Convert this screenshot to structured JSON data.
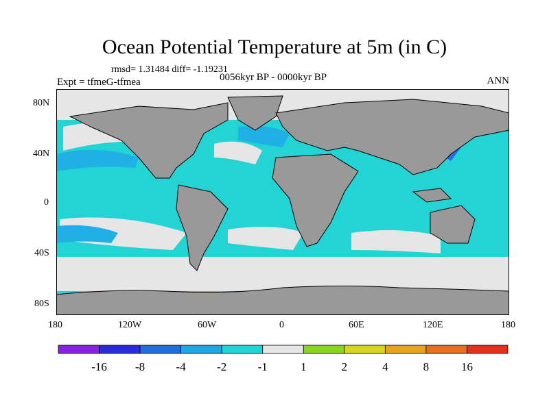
{
  "header": {
    "title": "Ocean Potential Temperature at 5m (in C)",
    "stats": "rmsd= 1.31484 diff= -1.19231",
    "experiment": "Expt = tfmeG-tfmea",
    "period": "0056kyr BP - 0000kyr BP",
    "season": "ANN"
  },
  "axes": {
    "x_ticks": [
      "180",
      "120W",
      "60W",
      "0",
      "60E",
      "120E",
      "180"
    ],
    "y_ticks": [
      "80N",
      "40N",
      "0",
      "40S",
      "80S"
    ]
  },
  "colorbar": {
    "labels": [
      "-16",
      "-8",
      "-4",
      "-2",
      "-1",
      "1",
      "2",
      "4",
      "8",
      "16"
    ],
    "colors": [
      "#8a1fe6",
      "#2a2ae0",
      "#1f6fe0",
      "#1fa8e6",
      "#1fd6d6",
      "#e6e6e6",
      "#8ad61f",
      "#d6d61f",
      "#e6a31f",
      "#e6701f",
      "#e6301f"
    ]
  },
  "map_colors": {
    "land": "#999999",
    "near_zero": "#e6e6e6",
    "cyan": "#22d4d4",
    "light_blue": "#1fb0e6",
    "blue": "#1f70e0"
  }
}
